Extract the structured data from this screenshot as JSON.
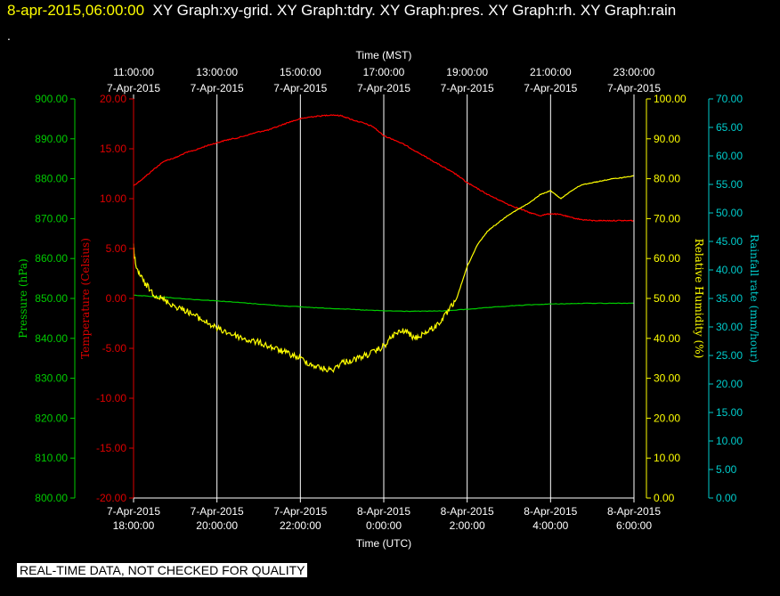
{
  "header": {
    "timestamp": "8-apr-2015,06:00:00",
    "graphs": "XY Graph:xy-grid.  XY Graph:tdry.  XY Graph:pres.  XY Graph:rh.  XY Graph:rain",
    "dot": "."
  },
  "note": "REAL-TIME DATA, NOT CHECKED FOR QUALITY",
  "chart_data": {
    "type": "line",
    "top_axis": {
      "title": "Time (MST)",
      "ticks": [
        {
          "hour": 0,
          "time": "11:00:00",
          "date": "7-Apr-2015"
        },
        {
          "hour": 2,
          "time": "13:00:00",
          "date": "7-Apr-2015"
        },
        {
          "hour": 4,
          "time": "15:00:00",
          "date": "7-Apr-2015"
        },
        {
          "hour": 6,
          "time": "17:00:00",
          "date": "7-Apr-2015"
        },
        {
          "hour": 8,
          "time": "19:00:00",
          "date": "7-Apr-2015"
        },
        {
          "hour": 10,
          "time": "21:00:00",
          "date": "7-Apr-2015"
        },
        {
          "hour": 12,
          "time": "23:00:00",
          "date": "7-Apr-2015"
        }
      ]
    },
    "bottom_axis": {
      "title": "Time (UTC)",
      "ticks": [
        {
          "hour": 0,
          "date": "7-Apr-2015",
          "time": "18:00:00"
        },
        {
          "hour": 2,
          "date": "7-Apr-2015",
          "time": "20:00:00"
        },
        {
          "hour": 4,
          "date": "7-Apr-2015",
          "time": "22:00:00"
        },
        {
          "hour": 6,
          "date": "8-Apr-2015",
          "time": "0:00:00"
        },
        {
          "hour": 8,
          "date": "8-Apr-2015",
          "time": "2:00:00"
        },
        {
          "hour": 10,
          "date": "8-Apr-2015",
          "time": "4:00:00"
        },
        {
          "hour": 12,
          "date": "8-Apr-2015",
          "time": "6:00:00"
        }
      ]
    },
    "xlim": [
      0,
      12
    ],
    "grid": true,
    "axes": [
      {
        "id": "pres",
        "label": "Pressure (hPa)",
        "color": "#00cc00",
        "ylim": [
          800,
          900
        ],
        "step": 10,
        "decimals": 2
      },
      {
        "id": "tdry",
        "label": "Temperature (Celsius)",
        "color": "#dd0000",
        "ylim": [
          -20,
          20
        ],
        "step": 5,
        "decimals": 2
      },
      {
        "id": "rh",
        "label": "Relative Humidity (%)",
        "color": "#ffff00",
        "ylim": [
          0,
          100
        ],
        "step": 10,
        "decimals": 2
      },
      {
        "id": "rain",
        "label": "Rainfall rate (mm/hour)",
        "color": "#00cccc",
        "ylim": [
          0,
          70
        ],
        "step": 5,
        "decimals": 2
      }
    ],
    "series": [
      {
        "axis": "tdry",
        "color": "#ff0000",
        "x": [
          0,
          0.25,
          0.5,
          0.75,
          1.0,
          1.25,
          1.5,
          1.75,
          2.0,
          2.25,
          2.5,
          2.75,
          3.0,
          3.25,
          3.5,
          3.75,
          4.0,
          4.25,
          4.5,
          4.75,
          5.0,
          5.25,
          5.5,
          5.75,
          6.0,
          6.25,
          6.5,
          6.75,
          7.0,
          7.25,
          7.5,
          7.75,
          8.0,
          8.25,
          8.5,
          8.75,
          9.0,
          9.25,
          9.5,
          9.75,
          10.0,
          10.25,
          10.5,
          10.75,
          11.0,
          11.25,
          11.5,
          11.75,
          12.0
        ],
        "y": [
          11.3,
          12.1,
          13.0,
          13.8,
          14.1,
          14.6,
          14.9,
          15.3,
          15.6,
          15.9,
          16.1,
          16.4,
          16.7,
          16.9,
          17.3,
          17.7,
          18.0,
          18.2,
          18.3,
          18.4,
          18.3,
          17.9,
          17.6,
          17.2,
          16.3,
          15.9,
          15.4,
          14.8,
          14.2,
          13.6,
          13.0,
          12.4,
          11.6,
          11.0,
          10.4,
          9.9,
          9.4,
          9.0,
          8.6,
          8.3,
          8.5,
          8.4,
          8.1,
          7.9,
          7.8,
          7.8,
          7.8,
          7.8,
          7.8
        ]
      },
      {
        "axis": "pres",
        "color": "#00cc00",
        "x": [
          0,
          0.5,
          1.0,
          1.5,
          2.0,
          2.5,
          3.0,
          3.5,
          4.0,
          4.5,
          5.0,
          5.5,
          6.0,
          6.5,
          7.0,
          7.5,
          8.0,
          8.5,
          9.0,
          9.5,
          10.0,
          10.5,
          11.0,
          11.5,
          12.0
        ],
        "y": [
          850.8,
          850.5,
          850.1,
          849.7,
          849.4,
          849.0,
          848.6,
          848.2,
          847.9,
          847.6,
          847.4,
          847.1,
          846.9,
          846.8,
          846.8,
          846.9,
          847.3,
          847.7,
          848.1,
          848.4,
          848.6,
          848.7,
          848.8,
          848.8,
          848.8
        ]
      },
      {
        "axis": "rh",
        "color": "#ffff00",
        "x": [
          0,
          0.05,
          0.25,
          0.5,
          0.75,
          1.0,
          1.25,
          1.5,
          1.75,
          2.0,
          2.25,
          2.5,
          2.75,
          3.0,
          3.25,
          3.5,
          3.75,
          4.0,
          4.25,
          4.5,
          4.75,
          5.0,
          5.25,
          5.5,
          5.75,
          6.0,
          6.25,
          6.5,
          6.75,
          7.0,
          7.25,
          7.5,
          7.75,
          8.0,
          8.25,
          8.5,
          8.75,
          9.0,
          9.25,
          9.5,
          9.75,
          10.0,
          10.25,
          10.5,
          10.75,
          11.0,
          11.25,
          11.5,
          11.75,
          12.0
        ],
        "y": [
          63.0,
          58.0,
          54.0,
          51.0,
          49.5,
          48.0,
          47.0,
          45.5,
          44.0,
          42.5,
          41.5,
          40.5,
          39.5,
          39.0,
          38.0,
          37.0,
          36.0,
          35.0,
          33.5,
          32.5,
          32.0,
          34.0,
          34.5,
          35.5,
          36.5,
          38.0,
          41.0,
          42.0,
          40.0,
          41.5,
          43.0,
          46.0,
          50.0,
          58.0,
          63.5,
          67.0,
          69.0,
          71.0,
          72.5,
          74.0,
          76.0,
          77.0,
          75.0,
          77.0,
          78.5,
          79.0,
          79.5,
          80.0,
          80.3,
          80.8
        ]
      }
    ]
  }
}
